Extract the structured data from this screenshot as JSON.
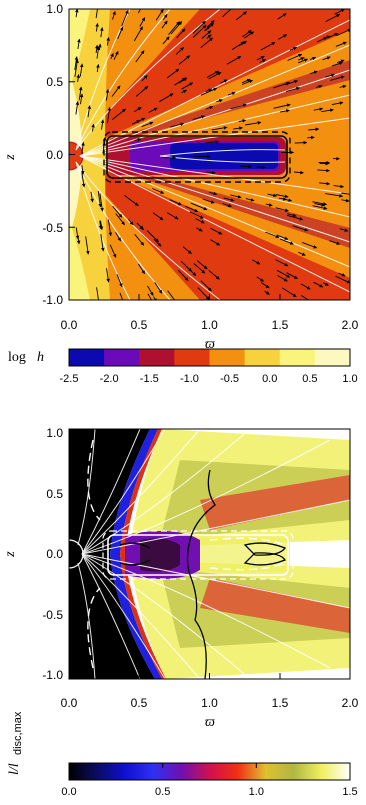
{
  "chart_data": [
    {
      "type": "heatmap",
      "panel": "top",
      "xlabel": "ϖ",
      "ylabel": "z",
      "xlim": [
        0.0,
        2.0
      ],
      "ylim": [
        -1.0,
        1.0
      ],
      "xticks": [
        "0.0",
        "0.5",
        "1.0",
        "1.5",
        "2.0"
      ],
      "yticks": [
        "1.0",
        "0.5",
        "0.0",
        "-0.5",
        "-1.0"
      ],
      "colorbar": {
        "label_main": "log",
        "label_var": "h",
        "ticks": [
          "-2.5",
          "-2.0",
          "-1.5",
          "-1.0",
          "-0.5",
          "0.0",
          "0.5",
          "1.0"
        ],
        "range": [
          -2.5,
          1.0
        ],
        "colors": [
          "#0a0ab0",
          "#6a0ab8",
          "#b01030",
          "#e03a10",
          "#f49010",
          "#f7d23c",
          "#fbf47c",
          "#fdf8c0"
        ]
      },
      "overlays": [
        "velocity arrows",
        "white field lines",
        "black box contours"
      ],
      "box": {
        "x": [
          0.3,
          1.5
        ],
        "z": [
          -0.15,
          0.15
        ]
      }
    },
    {
      "type": "heatmap",
      "panel": "bottom",
      "xlabel": "ϖ",
      "ylabel": "z",
      "xlim": [
        0.0,
        2.0
      ],
      "ylim": [
        -0.9,
        0.9
      ],
      "xticks": [
        "0.0",
        "0.5",
        "1.0",
        "1.5",
        "2.0"
      ],
      "yticks": [
        "1.0",
        "0.5",
        "0.0",
        "-0.5",
        "-1.0"
      ],
      "colorbar": {
        "label": "l/l",
        "label_sub": "disc,max",
        "ticks": [
          "0.0",
          "0.5",
          "1.0",
          "1.5"
        ],
        "range": [
          0.0,
          1.5
        ]
      },
      "overlays": [
        "white field lines",
        "black contours",
        "white dashed contours"
      ]
    }
  ]
}
